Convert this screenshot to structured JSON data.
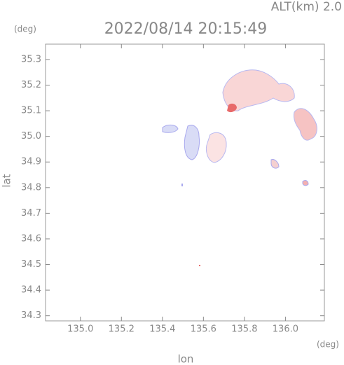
{
  "chart_data": {
    "type": "map",
    "title": "2022/08/14 20:15:49",
    "subtitle": "ALT(km) 2.0",
    "y_unit": "(deg)",
    "x_unit": "(deg)",
    "ylabel": "lat",
    "xlabel": "lon",
    "xlim": [
      134.83,
      136.19
    ],
    "ylim": [
      34.28,
      35.36
    ],
    "xticks": [
      {
        "value": 135,
        "label": "135.0"
      },
      135.2,
      135.4,
      135.6,
      135.8,
      {
        "value": 136,
        "label": "136.0"
      }
    ],
    "yticks": [
      34.3,
      34.4,
      34.5,
      34.6,
      34.7,
      34.8,
      34.9,
      {
        "value": 35,
        "label": "35.0"
      },
      35.1,
      35.2,
      35.3
    ],
    "color": "#888888"
  }
}
